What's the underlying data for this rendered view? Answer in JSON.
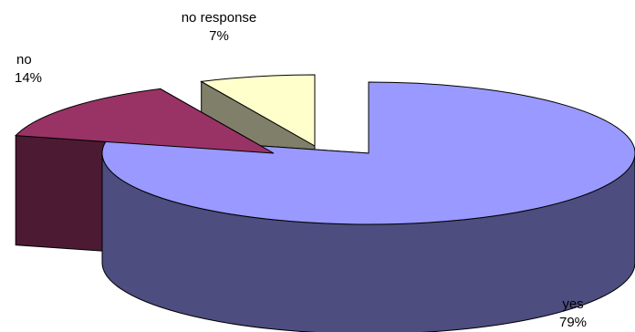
{
  "chart_data": {
    "type": "pie",
    "style": "3d-exploded",
    "categories": [
      "yes",
      "no",
      "no response"
    ],
    "values": [
      79,
      14,
      7
    ],
    "value_labels": [
      "79%",
      "14%",
      "7%"
    ],
    "colors": {
      "yes": {
        "top": "#9999ff",
        "side": "#4d4d80"
      },
      "no": {
        "top": "#993366",
        "side": "#4d1a33"
      },
      "no response": {
        "top": "#ffffcc",
        "side": "#80806a"
      }
    },
    "title": "",
    "legend": "none",
    "data_labels": "category-and-percent"
  }
}
